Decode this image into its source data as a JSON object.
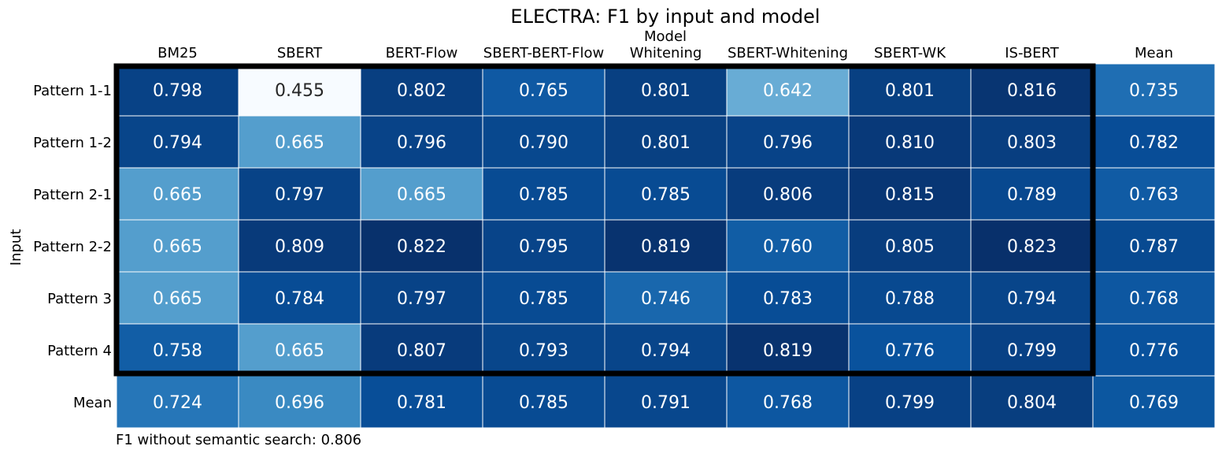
{
  "chart_data": {
    "type": "heatmap",
    "title": "ELECTRA: F1 by input and model",
    "xlabel": "Model",
    "ylabel": "Input",
    "columns": [
      "BM25",
      "SBERT",
      "BERT-Flow",
      "SBERT-BERT-Flow",
      "Whitening",
      "SBERT-Whitening",
      "SBERT-WK",
      "IS-BERT",
      "Mean"
    ],
    "rows": [
      "Pattern 1-1",
      "Pattern 1-2",
      "Pattern 2-1",
      "Pattern 2-2",
      "Pattern 3",
      "Pattern 4",
      "Mean"
    ],
    "values": [
      [
        0.798,
        0.455,
        0.802,
        0.765,
        0.801,
        0.642,
        0.801,
        0.816,
        0.735
      ],
      [
        0.794,
        0.665,
        0.796,
        0.79,
        0.801,
        0.796,
        0.81,
        0.803,
        0.782
      ],
      [
        0.665,
        0.797,
        0.665,
        0.785,
        0.785,
        0.806,
        0.815,
        0.789,
        0.763
      ],
      [
        0.665,
        0.809,
        0.822,
        0.795,
        0.819,
        0.76,
        0.805,
        0.823,
        0.787
      ],
      [
        0.665,
        0.784,
        0.797,
        0.785,
        0.746,
        0.783,
        0.788,
        0.794,
        0.768
      ],
      [
        0.758,
        0.665,
        0.807,
        0.793,
        0.794,
        0.819,
        0.776,
        0.799,
        0.776
      ],
      [
        0.724,
        0.696,
        0.781,
        0.785,
        0.791,
        0.768,
        0.799,
        0.804,
        0.769
      ]
    ],
    "labels": [
      [
        "0.798",
        "0.455",
        "0.802",
        "0.765",
        "0.801",
        "0.642",
        "0.801",
        "0.816",
        "0.735"
      ],
      [
        "0.794",
        "0.665",
        "0.796",
        "0.790",
        "0.801",
        "0.796",
        "0.810",
        "0.803",
        "0.782"
      ],
      [
        "0.665",
        "0.797",
        "0.665",
        "0.785",
        "0.785",
        "0.806",
        "0.815",
        "0.789",
        "0.763"
      ],
      [
        "0.665",
        "0.809",
        "0.822",
        "0.795",
        "0.819",
        "0.760",
        "0.805",
        "0.823",
        "0.787"
      ],
      [
        "0.665",
        "0.784",
        "0.797",
        "0.785",
        "0.746",
        "0.783",
        "0.788",
        "0.794",
        "0.768"
      ],
      [
        "0.758",
        "0.665",
        "0.807",
        "0.793",
        "0.794",
        "0.819",
        "0.776",
        "0.799",
        "0.776"
      ],
      [
        "0.724",
        "0.696",
        "0.781",
        "0.785",
        "0.791",
        "0.768",
        "0.799",
        "0.804",
        "0.769"
      ]
    ],
    "colormap": "Blues",
    "vmin": 0.455,
    "vmax": 0.823,
    "colorbar": false,
    "highlight_box": "rows Pattern 1-1 to Pattern 4, columns BM25 to IS-BERT",
    "footnote": "F1 without semantic search: 0.806"
  }
}
